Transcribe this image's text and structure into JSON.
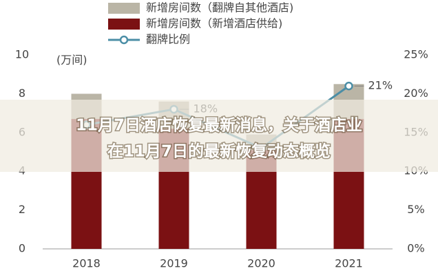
{
  "chart_data": {
    "type": "bar-line",
    "y_label": "(万间)",
    "categories": [
      "2018",
      "2019",
      "2020",
      "2021"
    ],
    "series": [
      {
        "name": "新增房间数（新增酒店供给)",
        "color": "#7b1113",
        "type": "bar",
        "values": [
          6.7,
          6.2,
          5.1,
          6.7
        ]
      },
      {
        "name": "新增房间数（翻牌自其他酒店)",
        "color": "#bab5a6",
        "type": "bar",
        "values": [
          1.3,
          1.4,
          0.8,
          1.8
        ]
      },
      {
        "name": "翻牌比例",
        "color": "#4b8ea6",
        "type": "line",
        "axis": "y2",
        "values": [
          16,
          18,
          13,
          21
        ],
        "value_labels": [
          null,
          "18%",
          null,
          "21%"
        ]
      }
    ],
    "ylim": [
      0,
      10
    ],
    "yticks": [
      0,
      2,
      4,
      6,
      8,
      10
    ],
    "y2lim": [
      0,
      25
    ],
    "y2ticks": [
      {
        "value": 0,
        "label": "0%"
      },
      {
        "value": 5,
        "label": "5%"
      },
      {
        "value": 10,
        "label": "10%"
      },
      {
        "value": 15,
        "label": "15%"
      },
      {
        "value": 20,
        "label": "20%"
      },
      {
        "value": 25,
        "label": "25%"
      }
    ]
  },
  "overlay_title": [
    "11月7日酒店恢复最新消息，关于酒店业",
    "在11月7日的最新恢复动态概览"
  ]
}
